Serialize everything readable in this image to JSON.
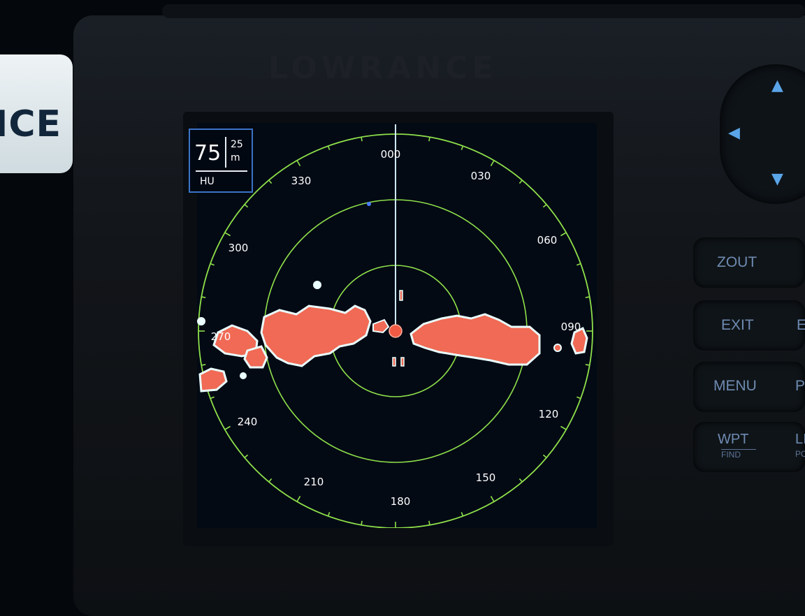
{
  "device": {
    "brand": "LOWRANCE",
    "sticker_text": "ICE"
  },
  "range": {
    "value": "75",
    "interval_value": "25",
    "interval_unit": "m",
    "orientation": "HU"
  },
  "compass": {
    "b000": "000",
    "b030": "030",
    "b060": "060",
    "b090": "090",
    "b120": "120",
    "b150": "150",
    "b180": "180",
    "b210": "210",
    "b240": "240",
    "b270": "270",
    "b300": "300",
    "b330": "330"
  },
  "buttons": {
    "zout": "ZOUT",
    "exit": "EXIT",
    "exit_partial": "E",
    "menu": "MENU",
    "menu_partial": "P",
    "wpt": "WPT",
    "wpt_sub": "FIND",
    "partial4": "LI",
    "partial4_sub": "PO"
  },
  "colors": {
    "ring": "#8fe04a",
    "echo": "#f06a55",
    "echo_edge": "#eaffff",
    "heading_line": "#cfe8ff",
    "vessel": "#f05a45"
  },
  "icons": {
    "up": "triangle-up-icon",
    "left": "triangle-left-icon",
    "down": "triangle-down-icon"
  }
}
